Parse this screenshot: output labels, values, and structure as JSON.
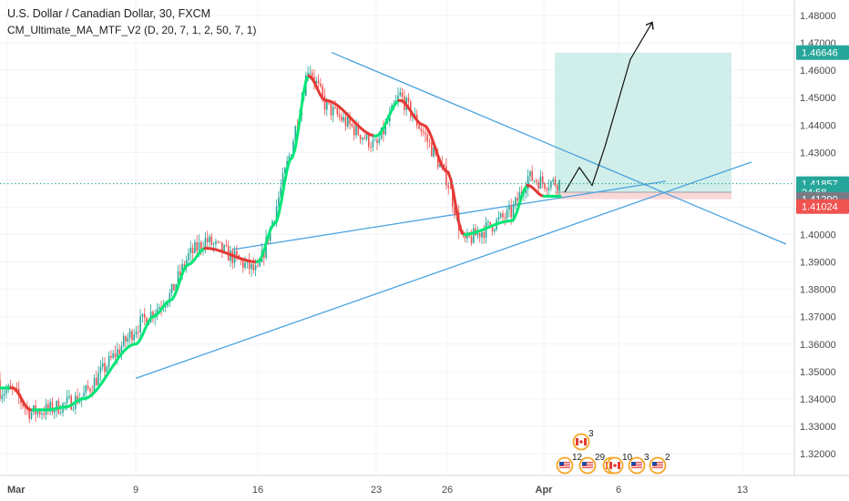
{
  "header": {
    "title": "U.S. Dollar / Canadian Dollar, 30, FXCM",
    "indicator": "CM_Ultimate_MA_MTF_V2 (D, 20, 7, 1, 2, 50, 7, 1)"
  },
  "colors": {
    "up": "#26a69a",
    "down": "#ef5350",
    "ma_up": "#00e676",
    "ma_down": "#e53935",
    "trendline": "#4aa3df",
    "profit_zone": "#cfeee9",
    "loss_zone": "#fbd6d6",
    "price_line": "#26a69a",
    "tag_green": "#26a69a",
    "tag_gray": "#787b86",
    "tag_red": "#ef5350"
  },
  "price_tags": [
    {
      "label": "1.46646",
      "price": 1.46646,
      "color": "#26a69a"
    },
    {
      "label": "1.41857",
      "price": 1.41857,
      "color": "#26a69a"
    },
    {
      "label": "24:58",
      "price": 1.41545,
      "color": "#26a69a"
    },
    {
      "label": "1.41290",
      "price": 1.4129,
      "color": "#787b86"
    },
    {
      "label": "1.41024",
      "price": 1.41024,
      "color": "#ef5350"
    }
  ],
  "events": [
    {
      "count": "3",
      "flag": "ca-flag-icon",
      "row": "upper"
    },
    {
      "count": "12",
      "flag": "us-flag-icon",
      "row": "lower"
    },
    {
      "count": "29",
      "flag": "us-flag-icon",
      "row": "lower"
    },
    {
      "count": "",
      "flag": "ca-flag-icon",
      "row": "lower"
    },
    {
      "count": "10",
      "flag": "ca-flag-icon",
      "row": "lower"
    },
    {
      "count": "3",
      "flag": "us-flag-icon",
      "row": "lower"
    },
    {
      "count": "2",
      "flag": "us-flag-icon",
      "row": "lower"
    }
  ],
  "chart_data": {
    "type": "line",
    "title": "U.S. Dollar / Canadian Dollar, 30, FXCM",
    "x_ticks": [
      "Mar",
      "9",
      "16",
      "23",
      "26",
      "Apr",
      "6",
      "13"
    ],
    "y_ticks": [
      "1.32000",
      "1.33000",
      "1.34000",
      "1.35000",
      "1.36000",
      "1.37000",
      "1.38000",
      "1.39000",
      "1.40000",
      "1.41000",
      "1.42000",
      "1.43000",
      "1.44000",
      "1.45000",
      "1.46000",
      "1.47000",
      "1.48000"
    ],
    "ylim": [
      1.3125,
      1.4855
    ],
    "grid": true,
    "price_line": 1.41857,
    "series": [
      {
        "name": "USD/CAD",
        "x": [
          "Mar 2",
          "Mar 3",
          "Mar 4",
          "Mar 5",
          "Mar 6",
          "Mar 9",
          "Mar 10",
          "Mar 11",
          "Mar 12",
          "Mar 13",
          "Mar 16",
          "Mar 17",
          "Mar 18",
          "Mar 19",
          "Mar 20",
          "Mar 23",
          "Mar 24",
          "Mar 25",
          "Mar 26",
          "Mar 27",
          "Mar 30",
          "Mar 31",
          "Apr 1"
        ],
        "values": [
          1.343,
          1.335,
          1.336,
          1.338,
          1.341,
          1.366,
          1.372,
          1.378,
          1.392,
          1.398,
          1.386,
          1.408,
          1.432,
          1.462,
          1.447,
          1.432,
          1.451,
          1.437,
          1.42,
          1.397,
          1.408,
          1.421,
          1.419
        ]
      }
    ],
    "ma_series": [
      {
        "x": [
          "Mar 2",
          "Mar 3",
          "Mar 4",
          "Mar 5",
          "Mar 6",
          "Mar 9",
          "Mar 10",
          "Mar 11",
          "Mar 12",
          "Mar 13",
          "Mar 16",
          "Mar 17",
          "Mar 18",
          "Mar 19",
          "Mar 20",
          "Mar 23",
          "Mar 24",
          "Mar 25",
          "Mar 26",
          "Mar 27",
          "Mar 30",
          "Mar 31",
          "Apr 1"
        ],
        "values": [
          1.344,
          1.336,
          1.336,
          1.337,
          1.34,
          1.36,
          1.37,
          1.376,
          1.389,
          1.395,
          1.39,
          1.404,
          1.428,
          1.458,
          1.449,
          1.436,
          1.449,
          1.44,
          1.423,
          1.4,
          1.405,
          1.418,
          1.414
        ]
      }
    ],
    "trendlines": [
      {
        "from": [
          "Mar 19",
          1.4665
        ],
        "to": [
          "Apr 13",
          1.3965
        ]
      },
      {
        "from": [
          "Mar 9",
          1.3475
        ],
        "to": [
          "Apr 13",
          1.4265
        ]
      },
      {
        "from": [
          "Mar 13",
          1.3945
        ],
        "to": [
          "Apr 8",
          1.4195
        ]
      }
    ],
    "position": {
      "entry": 1.41545,
      "target": 1.46646,
      "stop": 1.4129,
      "start": "Apr 1",
      "end": "Apr 13"
    },
    "projection": [
      [
        "Apr 1",
        1.4155
      ],
      [
        "Apr 2",
        1.4245
      ],
      [
        "Apr 3",
        1.418
      ],
      [
        "Apr 4",
        1.432
      ],
      [
        "Apr 6",
        1.464
      ],
      [
        "Apr 8",
        1.4775
      ]
    ]
  }
}
